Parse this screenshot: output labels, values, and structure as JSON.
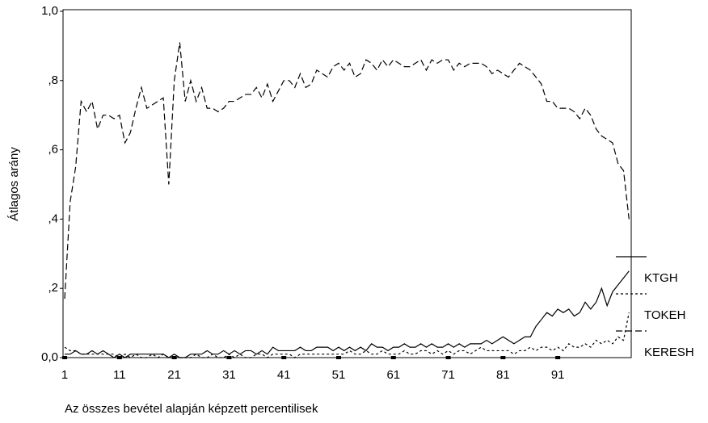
{
  "chart_data": {
    "type": "line",
    "x_label": "Az összes bevétel alapján képzett percentilisek",
    "y_label": "Átlagos arány",
    "x": [
      1,
      2,
      3,
      4,
      5,
      6,
      7,
      8,
      9,
      10,
      11,
      12,
      13,
      14,
      15,
      16,
      17,
      18,
      19,
      20,
      21,
      22,
      23,
      24,
      25,
      26,
      27,
      28,
      29,
      30,
      31,
      32,
      33,
      34,
      35,
      36,
      37,
      38,
      39,
      40,
      41,
      42,
      43,
      44,
      45,
      46,
      47,
      48,
      49,
      50,
      51,
      52,
      53,
      54,
      55,
      56,
      57,
      58,
      59,
      60,
      61,
      62,
      63,
      64,
      65,
      66,
      67,
      68,
      69,
      70,
      71,
      72,
      73,
      74,
      75,
      76,
      77,
      78,
      79,
      80,
      81,
      82,
      83,
      84,
      85,
      86,
      87,
      88,
      89,
      90,
      91,
      92,
      93,
      94,
      95,
      96,
      97,
      98,
      99,
      100,
      101,
      102,
      103,
      104
    ],
    "xlim": [
      0.7,
      104.4
    ],
    "xticks": [
      1,
      11,
      21,
      31,
      41,
      51,
      61,
      71,
      81,
      91
    ],
    "ylim": [
      0,
      1
    ],
    "yticks": [
      {
        "value": 0,
        "label": "0,0"
      },
      {
        "value": 0.2,
        "label": ",2"
      },
      {
        "value": 0.4,
        "label": ",4"
      },
      {
        "value": 0.6,
        "label": ",6"
      },
      {
        "value": 0.8,
        "label": ",8"
      },
      {
        "value": 1,
        "label": "1,0"
      }
    ],
    "series": [
      {
        "name": "KTGH",
        "color": "#000000",
        "dash": "solid",
        "values": [
          0.01,
          0.01,
          0.02,
          0.01,
          0.01,
          0.02,
          0.01,
          0.02,
          0.01,
          0,
          0.01,
          0,
          0.01,
          0.01,
          0.01,
          0.01,
          0.01,
          0.01,
          0.01,
          0,
          0.01,
          0,
          0,
          0.01,
          0.01,
          0.01,
          0.02,
          0.01,
          0.01,
          0.02,
          0.01,
          0.02,
          0.01,
          0.02,
          0.02,
          0.01,
          0.02,
          0.01,
          0.03,
          0.02,
          0.02,
          0.02,
          0.02,
          0.03,
          0.02,
          0.02,
          0.03,
          0.03,
          0.03,
          0.02,
          0.03,
          0.02,
          0.03,
          0.02,
          0.03,
          0.02,
          0.04,
          0.03,
          0.03,
          0.02,
          0.03,
          0.03,
          0.04,
          0.03,
          0.03,
          0.04,
          0.03,
          0.04,
          0.03,
          0.03,
          0.04,
          0.03,
          0.04,
          0.03,
          0.04,
          0.04,
          0.04,
          0.05,
          0.04,
          0.05,
          0.06,
          0.05,
          0.04,
          0.05,
          0.06,
          0.06,
          0.09,
          0.11,
          0.13,
          0.12,
          0.14,
          0.13,
          0.14,
          0.12,
          0.13,
          0.16,
          0.14,
          0.16,
          0.2,
          0.15,
          0.19,
          0.21,
          0.23,
          0.25
        ]
      },
      {
        "name": "TOKEH",
        "color": "#000000",
        "dash": "dotted",
        "values": [
          0.03,
          0.02,
          0.02,
          0.01,
          0.01,
          0.01,
          0.01,
          0.01,
          0.01,
          0.01,
          0,
          0.01,
          0,
          0.01,
          0,
          0,
          0.01,
          0,
          0.01,
          0,
          0,
          0,
          0,
          0,
          0.01,
          0,
          0,
          0.01,
          0,
          0,
          0.01,
          0,
          0.01,
          0,
          0,
          0.01,
          0.01,
          0,
          0.01,
          0.01,
          0.01,
          0.01,
          0,
          0.01,
          0.01,
          0.01,
          0.01,
          0.01,
          0.01,
          0.01,
          0.01,
          0.01,
          0.02,
          0.01,
          0.01,
          0.02,
          0.01,
          0.01,
          0.02,
          0.01,
          0.01,
          0.01,
          0.02,
          0.01,
          0.01,
          0.02,
          0.02,
          0.01,
          0.02,
          0.01,
          0.02,
          0.01,
          0.02,
          0.02,
          0.01,
          0.02,
          0.03,
          0.02,
          0.02,
          0.02,
          0.02,
          0.02,
          0.01,
          0.02,
          0.02,
          0.03,
          0.02,
          0.03,
          0.03,
          0.02,
          0.03,
          0.02,
          0.04,
          0.03,
          0.03,
          0.04,
          0.03,
          0.05,
          0.04,
          0.05,
          0.04,
          0.06,
          0.05,
          0.13
        ]
      },
      {
        "name": "KERESH",
        "color": "#000000",
        "dash": "dashed",
        "values": [
          0.17,
          0.45,
          0.55,
          0.74,
          0.71,
          0.74,
          0.66,
          0.7,
          0.7,
          0.69,
          0.7,
          0.62,
          0.65,
          0.72,
          0.78,
          0.72,
          0.73,
          0.74,
          0.75,
          0.5,
          0.8,
          0.91,
          0.74,
          0.8,
          0.74,
          0.78,
          0.72,
          0.72,
          0.71,
          0.72,
          0.74,
          0.74,
          0.75,
          0.76,
          0.76,
          0.78,
          0.75,
          0.79,
          0.74,
          0.77,
          0.8,
          0.8,
          0.78,
          0.82,
          0.78,
          0.79,
          0.83,
          0.82,
          0.81,
          0.84,
          0.85,
          0.83,
          0.85,
          0.81,
          0.82,
          0.86,
          0.85,
          0.83,
          0.86,
          0.84,
          0.86,
          0.85,
          0.84,
          0.84,
          0.85,
          0.86,
          0.83,
          0.86,
          0.85,
          0.86,
          0.86,
          0.83,
          0.85,
          0.84,
          0.85,
          0.85,
          0.85,
          0.84,
          0.82,
          0.83,
          0.82,
          0.81,
          0.83,
          0.85,
          0.84,
          0.83,
          0.81,
          0.79,
          0.74,
          0.74,
          0.72,
          0.72,
          0.72,
          0.71,
          0.69,
          0.72,
          0.7,
          0.66,
          0.64,
          0.63,
          0.62,
          0.56,
          0.54,
          0.4
        ]
      }
    ]
  }
}
